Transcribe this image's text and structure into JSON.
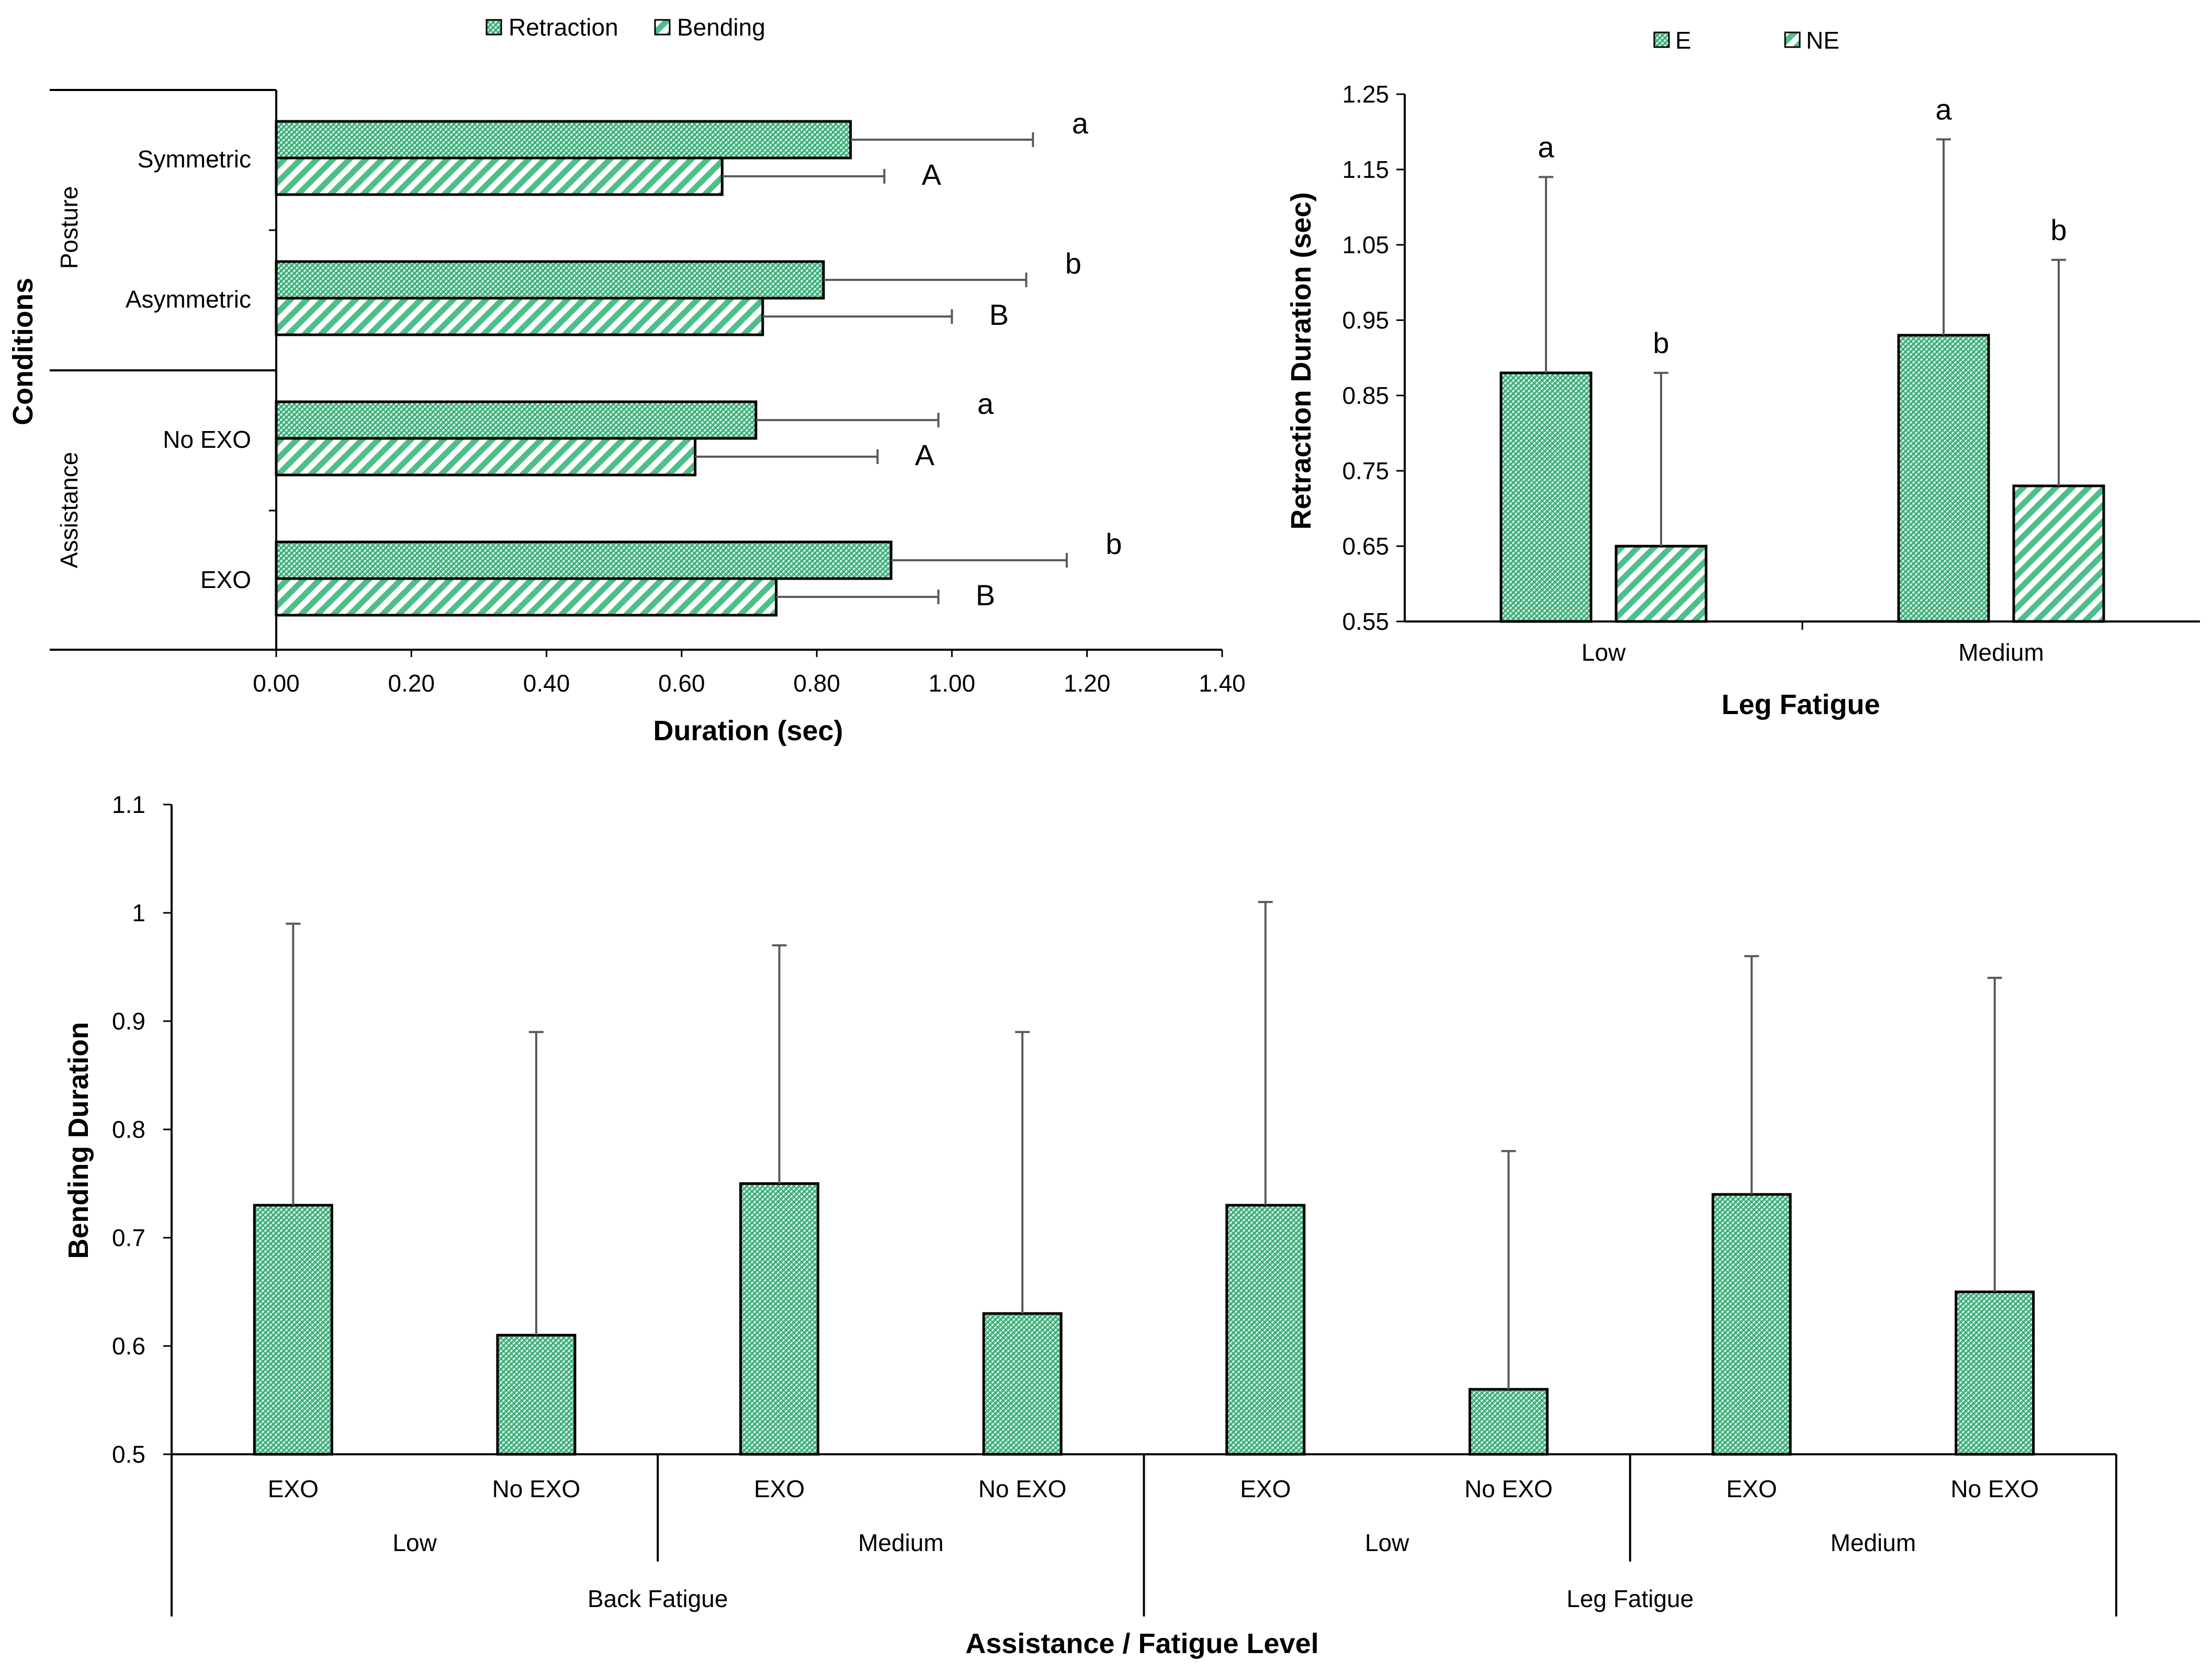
{
  "chart_data": [
    {
      "id": "chartA",
      "type": "bar",
      "orientation": "horizontal",
      "title": "",
      "xlabel": "Duration (sec)",
      "ylabel": "Conditions",
      "xlim": [
        0,
        1.4
      ],
      "xticks": [
        "0.00",
        "0.20",
        "0.40",
        "0.60",
        "0.80",
        "1.00",
        "1.20",
        "1.40"
      ],
      "groups": [
        {
          "label": "Posture",
          "categories": [
            "Symmetric",
            "Asymmetric"
          ]
        },
        {
          "label": "Assistance",
          "categories": [
            "No EXO",
            "EXO"
          ]
        }
      ],
      "categories": [
        "Symmetric",
        "Asymmetric",
        "No EXO",
        "EXO"
      ],
      "series": [
        {
          "name": "Retraction",
          "pattern": "crosshatch",
          "values": [
            0.85,
            0.81,
            0.71,
            0.91
          ],
          "error_upper": [
            1.12,
            1.11,
            0.98,
            1.17
          ],
          "letters": [
            "a",
            "b",
            "a",
            "b"
          ]
        },
        {
          "name": "Bending",
          "pattern": "diagonal",
          "values": [
            0.66,
            0.72,
            0.62,
            0.74
          ],
          "error_upper": [
            0.9,
            1.0,
            0.89,
            0.98
          ],
          "letters": [
            "A",
            "B",
            "A",
            "B"
          ]
        }
      ],
      "legend": "top"
    },
    {
      "id": "chartB",
      "type": "bar",
      "title": "",
      "xlabel": "Leg Fatigue",
      "ylabel": "Retraction Duration (sec)",
      "ylim": [
        0.55,
        1.25
      ],
      "yticks": [
        "0.55",
        "0.65",
        "0.75",
        "0.85",
        "0.95",
        "1.05",
        "1.15",
        "1.25"
      ],
      "categories": [
        "Low",
        "Medium"
      ],
      "series": [
        {
          "name": "E",
          "pattern": "crosshatch",
          "values": [
            0.88,
            0.93
          ],
          "error_upper": [
            1.14,
            1.19
          ],
          "letters": [
            "a",
            "a"
          ]
        },
        {
          "name": "NE",
          "pattern": "diagonal",
          "values": [
            0.65,
            0.73
          ],
          "error_upper": [
            0.88,
            1.03
          ],
          "letters": [
            "b",
            "b"
          ]
        }
      ],
      "legend": "top"
    },
    {
      "id": "chartC",
      "type": "bar",
      "title": "",
      "xlabel": "Assistance / Fatigue Level",
      "ylabel": "Bending Duration",
      "ylim": [
        0.5,
        1.1
      ],
      "yticks": [
        "0.5",
        "0.6",
        "0.7",
        "0.8",
        "0.9",
        "1",
        "1.1"
      ],
      "categories": [
        "EXO",
        "No EXO",
        "EXO",
        "No EXO",
        "EXO",
        "No EXO",
        "EXO",
        "No EXO"
      ],
      "level_labels": [
        "Low",
        "Medium",
        "Low",
        "Medium"
      ],
      "fatigue_labels": [
        "Back Fatigue",
        "Leg Fatigue"
      ],
      "series": [
        {
          "name": "Bending Duration",
          "pattern": "crosshatch",
          "values": [
            0.73,
            0.61,
            0.75,
            0.63,
            0.73,
            0.56,
            0.74,
            0.65
          ],
          "error_upper": [
            0.99,
            0.89,
            0.97,
            0.89,
            1.01,
            0.78,
            0.96,
            0.94
          ]
        }
      ]
    }
  ],
  "colors": {
    "fill": "#4dbf8a",
    "stripe": "#ffffff",
    "outline": "#000000",
    "error_bar": "#595959",
    "axis": "#000000"
  }
}
